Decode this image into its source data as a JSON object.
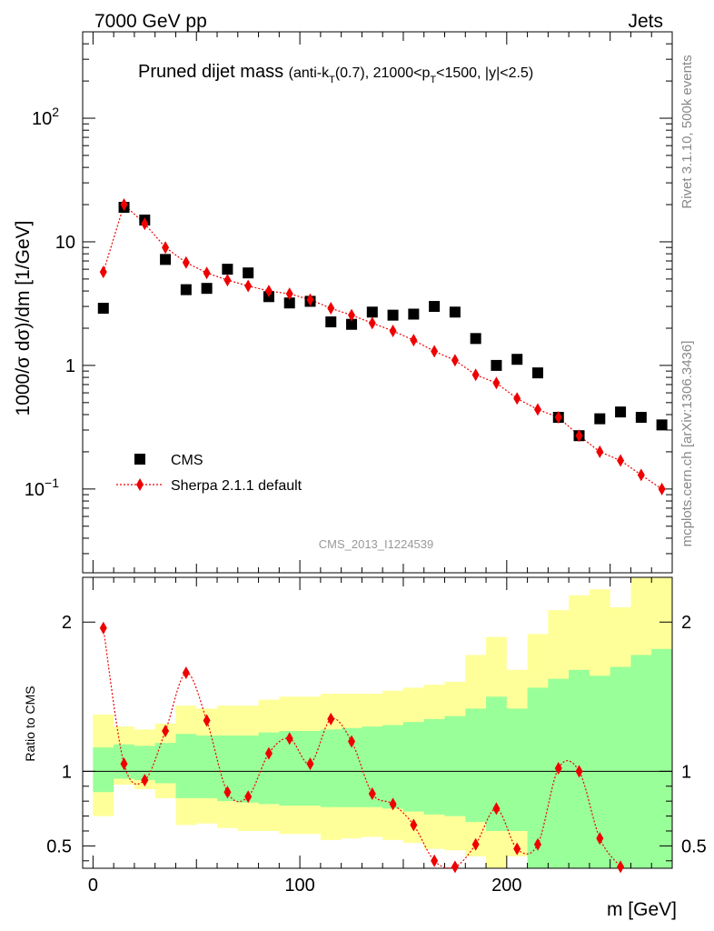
{
  "header": {
    "left": "7000 GeV pp",
    "right": "Jets"
  },
  "side_labels": {
    "rivet": "Rivet 3.1.10,  500k events",
    "mcplots": "mcplots.cern.ch [arXiv:1306.3436]"
  },
  "watermark": "CMS_2013_I1224539",
  "colors": {
    "data": "#000000",
    "mc": "#ee0000",
    "band_outer": "#ffff99",
    "band_inner": "#99ff99"
  },
  "chart_data": [
    {
      "type": "scatter",
      "panel": "main",
      "title": "Pruned dijet mass",
      "title_sub": "(anti-k",
      "title_sub_T": "T",
      "title_sub_rest": "(0.7), 21000<p",
      "title_sub_T2": "T",
      "title_sub_end": "<1500, |y|<2.5)",
      "ylabel": "1000/σ dσ)/dm [1/GeV]",
      "xlabel": "",
      "y_scale": "log",
      "xlim": [
        -5,
        280
      ],
      "ylim": [
        0.021,
        500
      ],
      "y_ticks": [
        {
          "value": 100,
          "label": "10",
          "exp": "2"
        },
        {
          "value": 10,
          "label": "10",
          "exp": ""
        },
        {
          "value": 1,
          "label": "1",
          "exp": ""
        },
        {
          "value": 0.1,
          "label": "10",
          "exp": "−1"
        }
      ],
      "legend_position": "lower-left",
      "series": [
        {
          "name": "CMS",
          "marker": "square",
          "x": [
            5,
            15,
            25,
            35,
            45,
            55,
            65,
            75,
            85,
            95,
            105,
            115,
            125,
            135,
            145,
            155,
            165,
            175,
            185,
            195,
            205,
            215,
            225,
            235,
            245,
            255,
            265,
            275
          ],
          "y": [
            2.9,
            19.0,
            15.0,
            7.2,
            4.1,
            4.2,
            6.0,
            5.6,
            3.6,
            3.2,
            3.3,
            2.25,
            2.15,
            2.7,
            2.55,
            2.6,
            3.0,
            2.7,
            1.65,
            1.0,
            1.12,
            0.87,
            0.38,
            0.27,
            0.37,
            0.42,
            0.38,
            0.33
          ]
        },
        {
          "name": "Sherpa 2.1.1 default",
          "marker": "diamond",
          "x": [
            5,
            15,
            25,
            35,
            45,
            55,
            65,
            75,
            85,
            95,
            105,
            115,
            125,
            135,
            145,
            155,
            165,
            175,
            185,
            195,
            205,
            215,
            225,
            235,
            245,
            255,
            265,
            275
          ],
          "y": [
            5.7,
            20.0,
            14.0,
            9.0,
            6.8,
            5.6,
            4.9,
            4.4,
            4.0,
            3.8,
            3.4,
            2.9,
            2.55,
            2.2,
            1.9,
            1.6,
            1.3,
            1.1,
            0.84,
            0.72,
            0.54,
            0.44,
            0.38,
            0.27,
            0.2,
            0.17,
            0.13,
            0.1
          ]
        }
      ]
    },
    {
      "type": "line",
      "panel": "ratio",
      "ylabel": "Ratio to CMS",
      "xlabel": "m [GeV]",
      "xlim": [
        -5,
        280
      ],
      "ylim": [
        0.35,
        2.3
      ],
      "y_ticks": [
        2,
        1,
        0.5
      ],
      "y_tick_labels": [
        "2",
        "1",
        "0.5"
      ],
      "x_ticks": [
        0,
        100,
        200
      ],
      "x_tick_labels": [
        "0",
        "100",
        "200"
      ],
      "reference": 1,
      "bins": [
        0,
        10,
        20,
        30,
        40,
        50,
        60,
        70,
        80,
        90,
        100,
        110,
        120,
        130,
        140,
        150,
        160,
        170,
        180,
        190,
        200,
        210,
        220,
        230,
        240,
        250,
        260,
        270,
        280
      ],
      "band_outer": {
        "low": [
          0.7,
          0.91,
          0.88,
          0.82,
          0.64,
          0.65,
          0.62,
          0.6,
          0.6,
          0.58,
          0.58,
          0.54,
          0.55,
          0.56,
          0.54,
          0.52,
          0.48,
          0.47,
          0.43,
          0.35,
          0.43,
          0.35,
          0.35,
          0.35,
          0.35,
          0.35,
          0.35,
          0.35
        ],
        "high": [
          1.38,
          1.3,
          1.28,
          1.32,
          1.44,
          1.42,
          1.44,
          1.44,
          1.48,
          1.5,
          1.5,
          1.52,
          1.52,
          1.52,
          1.54,
          1.56,
          1.58,
          1.6,
          1.78,
          1.9,
          1.68,
          1.92,
          2.08,
          2.18,
          2.22,
          2.1,
          2.3,
          2.3
        ]
      },
      "band_inner": {
        "low": [
          0.86,
          0.95,
          0.94,
          0.92,
          0.82,
          0.82,
          0.8,
          0.79,
          0.78,
          0.77,
          0.77,
          0.76,
          0.76,
          0.76,
          0.75,
          0.73,
          0.71,
          0.7,
          0.66,
          0.6,
          0.6,
          0.35,
          0.35,
          0.35,
          0.35,
          0.35,
          0.35,
          0.35
        ],
        "high": [
          1.16,
          1.18,
          1.17,
          1.19,
          1.25,
          1.24,
          1.24,
          1.24,
          1.26,
          1.27,
          1.27,
          1.28,
          1.29,
          1.3,
          1.31,
          1.33,
          1.35,
          1.37,
          1.42,
          1.5,
          1.42,
          1.56,
          1.62,
          1.68,
          1.64,
          1.7,
          1.78,
          1.82
        ]
      },
      "series": [
        {
          "name": "Sherpa 2.1.1 default",
          "x": [
            5,
            15,
            25,
            35,
            45,
            55,
            65,
            75,
            85,
            95,
            105,
            115,
            125,
            135,
            145,
            155,
            165,
            175,
            185,
            195,
            205,
            215,
            225,
            235,
            245,
            255,
            265,
            275
          ],
          "y": [
            1.96,
            1.05,
            0.94,
            1.27,
            1.66,
            1.34,
            0.86,
            0.83,
            1.12,
            1.22,
            1.05,
            1.35,
            1.2,
            0.85,
            0.78,
            0.64,
            0.4,
            0.36,
            0.51,
            0.75,
            0.48,
            0.51,
            1.02,
            1.0,
            0.55,
            0.36,
            null,
            null
          ]
        }
      ]
    }
  ]
}
